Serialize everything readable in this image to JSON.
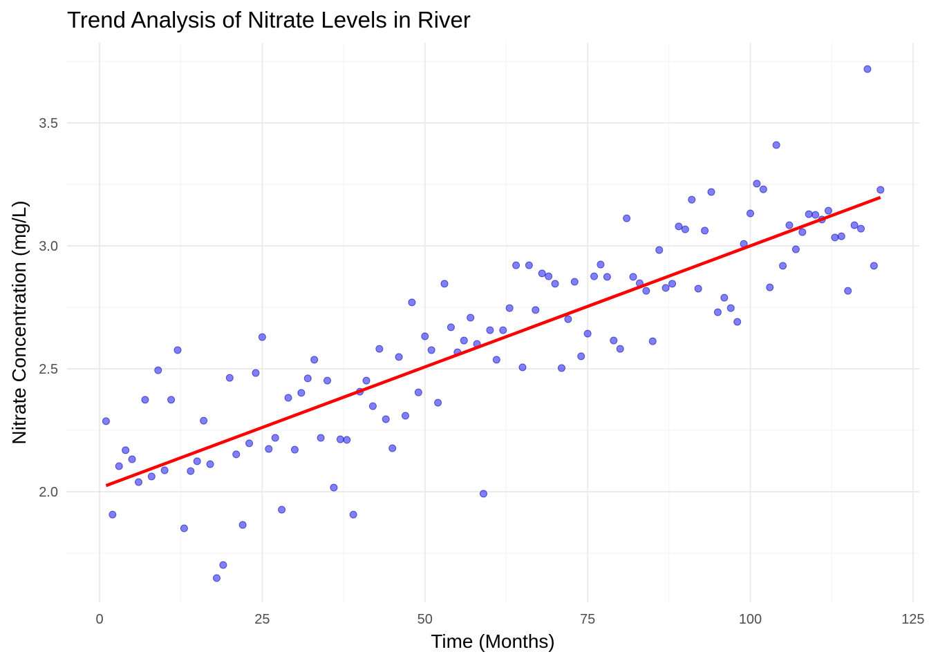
{
  "chart_data": {
    "type": "scatter",
    "title": "Trend Analysis of Nitrate Levels in River",
    "xlabel": "Time (Months)",
    "ylabel": "Nitrate Concentration (mg/L)",
    "xlim": [
      -5,
      126
    ],
    "ylim": [
      1.6,
      3.77
    ],
    "xticks": [
      0,
      25,
      50,
      75,
      100,
      125
    ],
    "xtick_labels": [
      "0",
      "25",
      "50",
      "75",
      "100",
      "125"
    ],
    "yticks": [
      2.0,
      2.5,
      3.0,
      3.5
    ],
    "ytick_labels": [
      "2.0",
      "2.5",
      "3.0",
      "3.5"
    ],
    "grid": true,
    "legend": "none",
    "point_color": "#0000ff",
    "line_color": "#ff0000",
    "x": [
      1,
      2,
      3,
      4,
      5,
      6,
      7,
      8,
      9,
      10,
      11,
      12,
      13,
      14,
      15,
      16,
      17,
      18,
      19,
      20,
      21,
      22,
      23,
      24,
      25,
      26,
      27,
      28,
      29,
      30,
      31,
      32,
      33,
      34,
      35,
      36,
      37,
      38,
      39,
      40,
      41,
      42,
      43,
      44,
      45,
      46,
      47,
      48,
      49,
      50,
      51,
      52,
      53,
      54,
      55,
      56,
      57,
      58,
      59,
      60,
      61,
      62,
      63,
      64,
      65,
      66,
      67,
      68,
      69,
      70,
      71,
      72,
      73,
      74,
      75,
      76,
      77,
      78,
      79,
      80,
      81,
      82,
      83,
      84,
      85,
      86,
      87,
      88,
      89,
      90,
      91,
      92,
      93,
      94,
      95,
      96,
      97,
      98,
      99,
      100,
      101,
      102,
      103,
      104,
      105,
      106,
      107,
      108,
      109,
      110,
      111,
      112,
      113,
      114,
      115,
      116,
      117,
      118,
      119,
      120
    ],
    "y": [
      2.287,
      1.907,
      2.104,
      2.169,
      2.132,
      2.039,
      2.374,
      2.062,
      2.494,
      2.087,
      2.374,
      2.576,
      1.851,
      2.084,
      2.124,
      2.289,
      2.112,
      1.649,
      1.702,
      2.463,
      2.152,
      1.865,
      2.197,
      2.483,
      2.629,
      2.174,
      2.219,
      1.927,
      2.382,
      2.171,
      2.402,
      2.461,
      2.537,
      2.219,
      2.452,
      2.017,
      2.213,
      2.211,
      1.907,
      2.407,
      2.452,
      2.348,
      2.581,
      2.295,
      2.177,
      2.548,
      2.309,
      2.77,
      2.404,
      2.632,
      2.576,
      2.362,
      2.846,
      2.669,
      2.567,
      2.615,
      2.708,
      2.601,
      1.992,
      2.657,
      2.537,
      2.657,
      2.747,
      2.921,
      2.506,
      2.921,
      2.739,
      2.888,
      2.876,
      2.846,
      2.503,
      2.702,
      2.854,
      2.551,
      2.643,
      2.876,
      2.924,
      2.874,
      2.615,
      2.581,
      3.112,
      2.874,
      2.848,
      2.817,
      2.612,
      2.983,
      2.829,
      2.846,
      3.079,
      3.067,
      3.188,
      2.826,
      3.062,
      3.219,
      2.73,
      2.789,
      2.747,
      2.691,
      3.008,
      3.132,
      3.253,
      3.23,
      2.831,
      3.41,
      2.919,
      3.084,
      2.986,
      3.056,
      3.129,
      3.126,
      3.107,
      3.143,
      3.034,
      3.039,
      2.817,
      3.084,
      3.07,
      3.719,
      2.919,
      3.228
    ],
    "trend_line": {
      "x": [
        1,
        120
      ],
      "y": [
        2.025,
        3.197
      ]
    }
  }
}
